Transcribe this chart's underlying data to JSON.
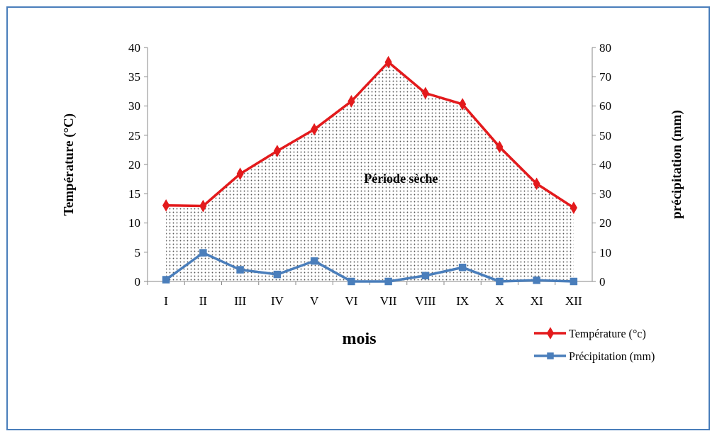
{
  "chart_data": {
    "type": "line",
    "xlabel": "mois",
    "ylabel": "Température (°C)",
    "y2label": "précipitation (mm)",
    "categories": [
      "I",
      "II",
      "III",
      "IV",
      "V",
      "VI",
      "VII",
      "VIII",
      "IX",
      "X",
      "XI",
      "XII"
    ],
    "series": [
      {
        "name": "Température (°c)",
        "type": "area",
        "color": "#e31a1c",
        "marker": "diamond",
        "values": [
          13,
          12.9,
          18.4,
          22.3,
          26,
          30.8,
          37.5,
          32.2,
          30.3,
          23,
          16.7,
          12.6
        ]
      },
      {
        "name": "Précipitation (mm)",
        "axis": "y2",
        "color": "#4a7ebb",
        "marker": "square",
        "values": [
          0.6,
          9.8,
          4,
          2.4,
          7,
          0,
          0,
          2,
          4.8,
          0,
          0.4,
          0
        ]
      }
    ],
    "ylim": [
      0,
      40
    ],
    "yticks": [
      0,
      5,
      10,
      15,
      20,
      25,
      30,
      35,
      40
    ],
    "y2lim": [
      0,
      80
    ],
    "y2ticks": [
      0,
      10,
      20,
      30,
      40,
      50,
      60,
      70,
      80
    ],
    "annotations": [
      "Période sèche"
    ],
    "legend": "bottom right",
    "grid": false
  }
}
